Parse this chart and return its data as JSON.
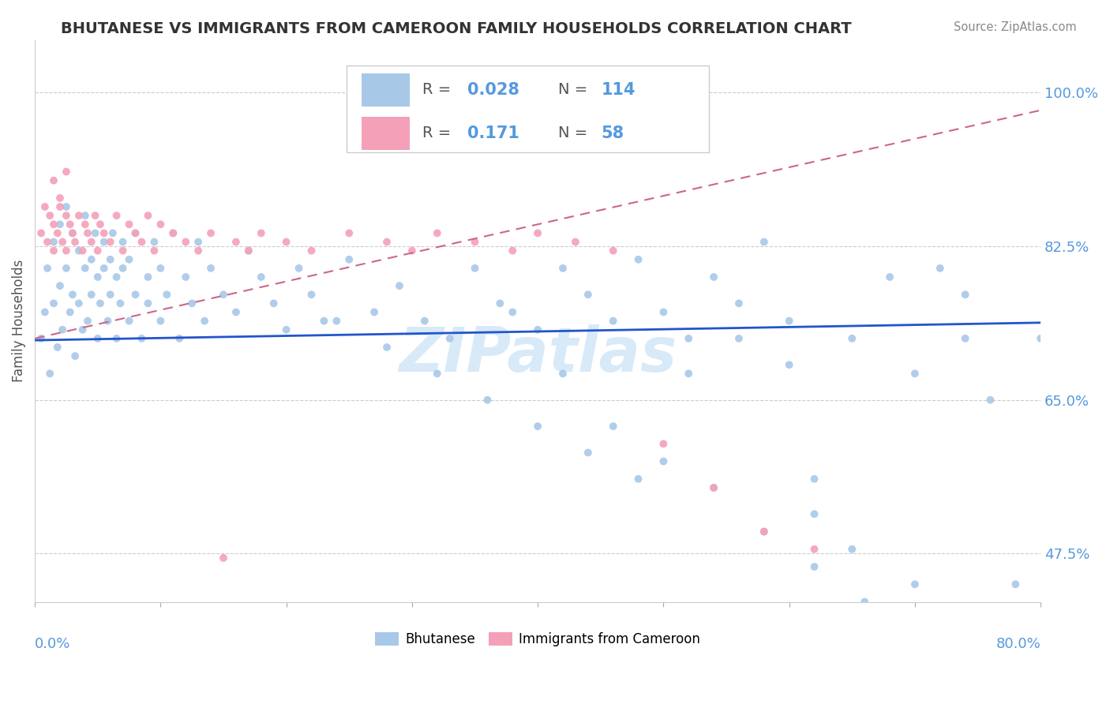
{
  "title": "BHUTANESE VS IMMIGRANTS FROM CAMEROON FAMILY HOUSEHOLDS CORRELATION CHART",
  "source": "Source: ZipAtlas.com",
  "ylabel": "Family Households",
  "ytick_labels": [
    "47.5%",
    "65.0%",
    "82.5%",
    "100.0%"
  ],
  "ytick_values": [
    0.475,
    0.65,
    0.825,
    1.0
  ],
  "xmin": 0.0,
  "xmax": 0.8,
  "ymin": 0.42,
  "ymax": 1.06,
  "blue_R": "0.028",
  "blue_N": "114",
  "pink_R": "0.171",
  "pink_N": "58",
  "blue_color": "#a8c8e8",
  "pink_color": "#f4a0b8",
  "blue_line_color": "#2255cc",
  "pink_line_color": "#cc6688",
  "title_color": "#333333",
  "axis_label_color": "#5599dd",
  "watermark_color": "#d8eaf8",
  "blue_scatter_x": [
    0.005,
    0.008,
    0.01,
    0.012,
    0.015,
    0.015,
    0.018,
    0.02,
    0.02,
    0.022,
    0.025,
    0.025,
    0.028,
    0.03,
    0.03,
    0.032,
    0.035,
    0.035,
    0.038,
    0.04,
    0.04,
    0.042,
    0.045,
    0.045,
    0.048,
    0.05,
    0.05,
    0.052,
    0.055,
    0.055,
    0.058,
    0.06,
    0.06,
    0.062,
    0.065,
    0.065,
    0.068,
    0.07,
    0.07,
    0.075,
    0.075,
    0.08,
    0.08,
    0.085,
    0.09,
    0.09,
    0.095,
    0.1,
    0.1,
    0.105,
    0.11,
    0.115,
    0.12,
    0.125,
    0.13,
    0.135,
    0.14,
    0.15,
    0.16,
    0.17,
    0.18,
    0.19,
    0.2,
    0.21,
    0.22,
    0.23,
    0.25,
    0.27,
    0.29,
    0.31,
    0.33,
    0.35,
    0.37,
    0.4,
    0.42,
    0.44,
    0.46,
    0.48,
    0.5,
    0.52,
    0.54,
    0.56,
    0.58,
    0.6,
    0.62,
    0.65,
    0.68,
    0.7,
    0.72,
    0.74,
    0.62,
    0.65,
    0.38,
    0.42,
    0.46,
    0.5,
    0.54,
    0.58,
    0.62,
    0.66,
    0.7,
    0.74,
    0.76,
    0.78,
    0.8,
    0.24,
    0.28,
    0.32,
    0.36,
    0.4,
    0.44,
    0.48,
    0.52,
    0.56,
    0.6
  ],
  "blue_scatter_y": [
    0.72,
    0.75,
    0.8,
    0.68,
    0.76,
    0.83,
    0.71,
    0.78,
    0.85,
    0.73,
    0.8,
    0.87,
    0.75,
    0.77,
    0.84,
    0.7,
    0.82,
    0.76,
    0.73,
    0.8,
    0.86,
    0.74,
    0.81,
    0.77,
    0.84,
    0.72,
    0.79,
    0.76,
    0.83,
    0.8,
    0.74,
    0.81,
    0.77,
    0.84,
    0.72,
    0.79,
    0.76,
    0.83,
    0.8,
    0.74,
    0.81,
    0.77,
    0.84,
    0.72,
    0.79,
    0.76,
    0.83,
    0.74,
    0.8,
    0.77,
    0.84,
    0.72,
    0.79,
    0.76,
    0.83,
    0.74,
    0.8,
    0.77,
    0.75,
    0.82,
    0.79,
    0.76,
    0.73,
    0.8,
    0.77,
    0.74,
    0.81,
    0.75,
    0.78,
    0.74,
    0.72,
    0.8,
    0.76,
    0.73,
    0.8,
    0.77,
    0.74,
    0.81,
    0.75,
    0.72,
    0.79,
    0.76,
    0.83,
    0.74,
    0.56,
    0.72,
    0.79,
    0.68,
    0.8,
    0.77,
    0.52,
    0.48,
    0.75,
    0.68,
    0.62,
    0.58,
    0.55,
    0.5,
    0.46,
    0.42,
    0.44,
    0.72,
    0.65,
    0.44,
    0.72,
    0.74,
    0.71,
    0.68,
    0.65,
    0.62,
    0.59,
    0.56,
    0.68,
    0.72,
    0.69
  ],
  "pink_scatter_x": [
    0.005,
    0.008,
    0.01,
    0.012,
    0.015,
    0.015,
    0.018,
    0.02,
    0.022,
    0.025,
    0.025,
    0.028,
    0.03,
    0.032,
    0.035,
    0.038,
    0.04,
    0.042,
    0.045,
    0.048,
    0.05,
    0.052,
    0.055,
    0.06,
    0.065,
    0.07,
    0.075,
    0.08,
    0.085,
    0.09,
    0.095,
    0.1,
    0.11,
    0.12,
    0.13,
    0.14,
    0.15,
    0.16,
    0.17,
    0.18,
    0.2,
    0.22,
    0.25,
    0.28,
    0.3,
    0.32,
    0.35,
    0.38,
    0.4,
    0.43,
    0.46,
    0.5,
    0.54,
    0.58,
    0.62,
    0.015,
    0.02,
    0.025
  ],
  "pink_scatter_y": [
    0.84,
    0.87,
    0.83,
    0.86,
    0.85,
    0.82,
    0.84,
    0.87,
    0.83,
    0.86,
    0.82,
    0.85,
    0.84,
    0.83,
    0.86,
    0.82,
    0.85,
    0.84,
    0.83,
    0.86,
    0.82,
    0.85,
    0.84,
    0.83,
    0.86,
    0.82,
    0.85,
    0.84,
    0.83,
    0.86,
    0.82,
    0.85,
    0.84,
    0.83,
    0.82,
    0.84,
    0.47,
    0.83,
    0.82,
    0.84,
    0.83,
    0.82,
    0.84,
    0.83,
    0.82,
    0.84,
    0.83,
    0.82,
    0.84,
    0.83,
    0.82,
    0.6,
    0.55,
    0.5,
    0.48,
    0.9,
    0.88,
    0.91
  ],
  "blue_trend_x": [
    0.0,
    0.8
  ],
  "blue_trend_y": [
    0.718,
    0.738
  ],
  "pink_trend_x": [
    0.0,
    0.8
  ],
  "pink_trend_y": [
    0.72,
    0.98
  ]
}
